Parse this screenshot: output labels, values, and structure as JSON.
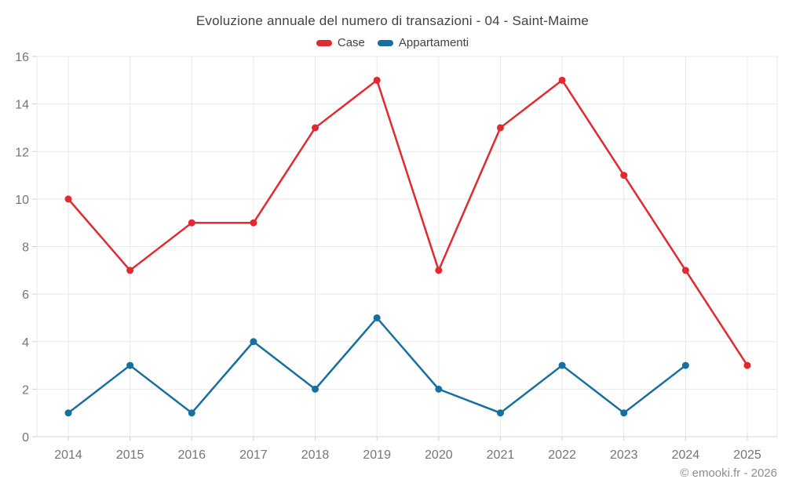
{
  "chart_data": {
    "type": "line",
    "title": "Evoluzione annuale del numero di transazioni - 04 - Saint-Maime",
    "categories": [
      "2014",
      "2015",
      "2016",
      "2017",
      "2018",
      "2019",
      "2020",
      "2021",
      "2022",
      "2023",
      "2024",
      "2025"
    ],
    "series": [
      {
        "name": "Case",
        "color": "#e02a2f",
        "values": [
          10,
          7,
          9,
          9,
          13,
          15,
          7,
          13,
          15,
          11,
          7,
          3
        ]
      },
      {
        "name": "Appartamenti",
        "color": "#156f9f",
        "values": [
          1,
          3,
          1,
          4,
          2,
          5,
          2,
          1,
          3,
          1,
          3,
          null
        ]
      }
    ],
    "xlabel": "",
    "ylabel": "",
    "ylim": [
      0,
      16
    ],
    "ytick_step": 2,
    "grid": true,
    "legend_position": "top"
  },
  "footer": {
    "credit": "© emooki.fr - 2026"
  },
  "colors": {
    "grid": "#e8e8e8",
    "axis_line": "#d6d6d6",
    "tick": "#cfcfcf",
    "axis_label": "#757575",
    "title_text": "#424242",
    "credit_text": "#8c8c8c",
    "background": "#ffffff"
  }
}
